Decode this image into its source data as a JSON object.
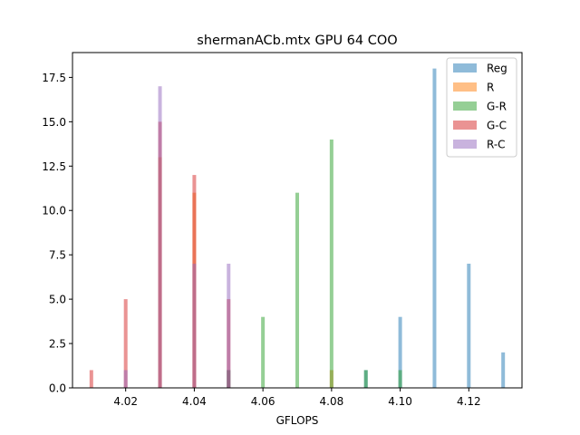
{
  "chart_data": {
    "type": "bar",
    "title": "shermanACb.mtx GPU 64 COO",
    "xlabel": "GFLOPS",
    "ylabel": "",
    "xlim": [
      4.0045,
      4.1355
    ],
    "ylim": [
      0,
      18.9
    ],
    "xticks": [
      4.02,
      4.04,
      4.06,
      4.08,
      4.1,
      4.12
    ],
    "xtick_labels": [
      "4.02",
      "4.04",
      "4.06",
      "4.08",
      "4.10",
      "4.12"
    ],
    "yticks": [
      0,
      2.5,
      5,
      7.5,
      10,
      12.5,
      15,
      17.5
    ],
    "ytick_labels": [
      "0.0",
      "2.5",
      "5.0",
      "7.5",
      "10.0",
      "12.5",
      "15.0",
      "17.5"
    ],
    "grid": false,
    "legend_position": "top-right",
    "bar_width": 0.001,
    "opacity": 0.5,
    "series": [
      {
        "name": "Reg",
        "color": "#1f77b4",
        "points": [
          [
            4.05,
            1
          ],
          [
            4.09,
            1
          ],
          [
            4.1,
            4
          ],
          [
            4.11,
            18
          ],
          [
            4.12,
            7
          ],
          [
            4.13,
            2
          ]
        ]
      },
      {
        "name": "R",
        "color": "#ff7f0e",
        "points": [
          [
            4.03,
            13
          ],
          [
            4.04,
            11
          ],
          [
            4.08,
            1
          ]
        ]
      },
      {
        "name": "G-R",
        "color": "#2ca02c",
        "points": [
          [
            4.05,
            1
          ],
          [
            4.06,
            4
          ],
          [
            4.07,
            11
          ],
          [
            4.08,
            14
          ],
          [
            4.09,
            1
          ],
          [
            4.1,
            1
          ]
        ]
      },
      {
        "name": "G-C",
        "color": "#d62728",
        "points": [
          [
            4.01,
            1
          ],
          [
            4.02,
            5
          ],
          [
            4.03,
            15
          ],
          [
            4.04,
            12
          ],
          [
            4.05,
            5
          ]
        ]
      },
      {
        "name": "R-C",
        "color": "#9467bd",
        "points": [
          [
            4.02,
            1
          ],
          [
            4.03,
            17
          ],
          [
            4.04,
            7
          ],
          [
            4.05,
            7
          ]
        ]
      }
    ]
  }
}
